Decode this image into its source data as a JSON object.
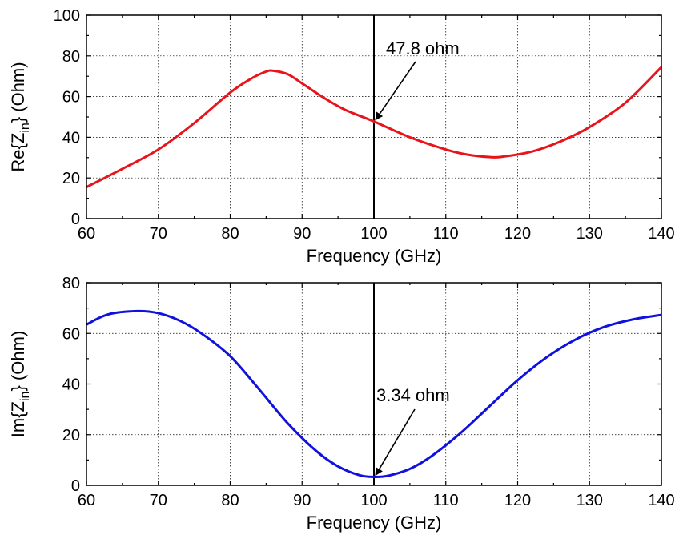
{
  "chart_data": [
    {
      "type": "line",
      "xlabel": "Frequency (GHz)",
      "ylabel_main": "Re{Z",
      "ylabel_sub": "in",
      "ylabel_tail": "} (Ohm)",
      "xlim": [
        60,
        140
      ],
      "ylim": [
        0,
        100
      ],
      "xticks": [
        60,
        70,
        80,
        90,
        100,
        110,
        120,
        130,
        140
      ],
      "yticks": [
        0,
        20,
        40,
        60,
        80,
        100
      ],
      "grid": true,
      "series": [
        {
          "color": "#e8141b",
          "x": [
            60,
            65,
            70,
            75,
            80,
            83,
            85,
            86,
            88,
            90,
            93,
            96,
            100,
            105,
            110,
            113,
            116,
            118,
            122,
            126,
            130,
            135,
            140
          ],
          "y": [
            15.5,
            24.5,
            34,
            47,
            62,
            69,
            72.3,
            72.7,
            71,
            66.5,
            59.5,
            53.5,
            47.8,
            40,
            34,
            31.5,
            30.3,
            30.5,
            33,
            38,
            45,
            57,
            74.5
          ]
        }
      ],
      "marker_x": 100,
      "annotation": {
        "text": "47.8 ohm",
        "x": 100,
        "y": 47.8
      }
    },
    {
      "type": "line",
      "xlabel": "Frequency (GHz)",
      "ylabel_main": "Im{Z",
      "ylabel_sub": "in",
      "ylabel_tail": "} (Ohm)",
      "xlim": [
        60,
        140
      ],
      "ylim": [
        0,
        80
      ],
      "xticks": [
        60,
        70,
        80,
        90,
        100,
        110,
        120,
        130,
        140
      ],
      "yticks": [
        0,
        20,
        40,
        60,
        80
      ],
      "grid": true,
      "series": [
        {
          "color": "#1111dd",
          "x": [
            60,
            63,
            67,
            70,
            73,
            76,
            80,
            84,
            88,
            92,
            95,
            98,
            100,
            102,
            105,
            108,
            112,
            116,
            120,
            124,
            128,
            132,
            136,
            140
          ],
          "y": [
            63.5,
            67.5,
            68.8,
            68,
            65,
            60,
            51,
            38,
            24.5,
            13.5,
            7.5,
            4,
            3.34,
            3.8,
            6.5,
            11.5,
            20.5,
            31,
            41.5,
            50.5,
            57.5,
            62.5,
            65.5,
            67.3
          ]
        }
      ],
      "marker_x": 100,
      "annotation": {
        "text": "3.34 ohm",
        "x": 100,
        "y": 3.34
      }
    }
  ]
}
